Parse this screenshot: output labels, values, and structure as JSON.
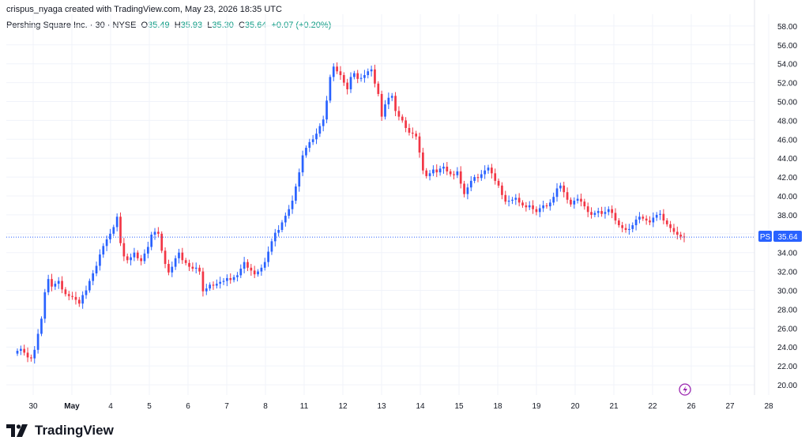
{
  "header": {
    "created_by": "crispus_nyaga created with TradingView.com, May 23, 2026 18:35 UTC"
  },
  "legend": {
    "symbol": "Pershing Square Inc. · 30 · NYSE",
    "o_label": "O",
    "o_value": "35.49",
    "h_label": "H",
    "h_value": "35.93",
    "l_label": "L",
    "l_value": "35.30",
    "c_label": "C",
    "c_value": "35.64",
    "change": "+0.07 (+0.20%)"
  },
  "price_tag": {
    "symbol": "PS",
    "value": "35.64"
  },
  "logo": {
    "text": "TradingView",
    "icon": "tradingview-logo-icon"
  },
  "colors": {
    "up": "#2962ff",
    "down": "#f23645",
    "grid": "#f0f3fa",
    "last_line": "#2962ff",
    "green_text": "#089981"
  },
  "chart_data": {
    "type": "candlestick",
    "title": "Pershing Square Inc. · 30 · NYSE",
    "xlabel": "",
    "ylabel": "",
    "ylim": [
      19,
      59
    ],
    "y_ticks": [
      20,
      22,
      24,
      26,
      28,
      30,
      32,
      34,
      36,
      38,
      40,
      42,
      44,
      46,
      48,
      50,
      52,
      54,
      56,
      58
    ],
    "y_tick_labels": [
      "20.00",
      "22.00",
      "24.00",
      "26.00",
      "28.00",
      "30.00",
      "32.00",
      "34.00",
      "36.00",
      "38.00",
      "40.00",
      "42.00",
      "44.00",
      "46.00",
      "48.00",
      "50.00",
      "52.00",
      "54.00",
      "56.00",
      "58.00"
    ],
    "x_ticks": [
      {
        "label": "30",
        "day": 0
      },
      {
        "label": "May",
        "day": 1,
        "bold": true
      },
      {
        "label": "4",
        "day": 2
      },
      {
        "label": "5",
        "day": 3
      },
      {
        "label": "6",
        "day": 4
      },
      {
        "label": "7",
        "day": 5
      },
      {
        "label": "8",
        "day": 6
      },
      {
        "label": "11",
        "day": 7
      },
      {
        "label": "12",
        "day": 8
      },
      {
        "label": "13",
        "day": 9
      },
      {
        "label": "14",
        "day": 10
      },
      {
        "label": "15",
        "day": 11
      },
      {
        "label": "18",
        "day": 12
      },
      {
        "label": "19",
        "day": 13
      },
      {
        "label": "20",
        "day": 14
      },
      {
        "label": "21",
        "day": 15
      },
      {
        "label": "22",
        "day": 16
      },
      {
        "label": "26",
        "day": 17
      },
      {
        "label": "27",
        "day": 18
      },
      {
        "label": "28",
        "day": 19
      }
    ],
    "grid": true,
    "last_price": 35.64,
    "closes": [
      23.6,
      23.8,
      23.4,
      22.9,
      22.8,
      23.7,
      25.4,
      27.0,
      29.8,
      31.2,
      30.4,
      30.7,
      31.0,
      30.1,
      29.6,
      29.4,
      29.3,
      29.0,
      28.6,
      29.5,
      30.0,
      31.0,
      31.8,
      32.6,
      33.8,
      34.7,
      35.4,
      36.0,
      36.7,
      37.8,
      35.0,
      33.6,
      33.2,
      33.5,
      34.0,
      33.4,
      33.1,
      33.9,
      34.6,
      35.9,
      36.2,
      36.0,
      34.2,
      32.8,
      31.9,
      32.5,
      33.4,
      34.0,
      33.2,
      32.9,
      32.5,
      32.3,
      32.4,
      32.0,
      29.9,
      30.2,
      30.6,
      30.5,
      30.7,
      30.9,
      31.0,
      31.3,
      31.1,
      31.4,
      31.6,
      32.3,
      33.0,
      32.4,
      32.1,
      31.7,
      32.0,
      32.4,
      33.0,
      34.1,
      35.2,
      36.1,
      36.4,
      37.2,
      37.9,
      38.6,
      39.5,
      41.0,
      42.5,
      44.3,
      45.1,
      45.7,
      46.0,
      46.6,
      47.4,
      48.1,
      50.1,
      52.6,
      53.7,
      53.2,
      52.8,
      52.0,
      51.3,
      52.6,
      53.0,
      52.4,
      52.5,
      52.8,
      53.2,
      53.4,
      51.9,
      50.8,
      48.4,
      49.7,
      50.4,
      50.6,
      49.0,
      48.4,
      48.0,
      47.2,
      46.7,
      46.6,
      46.3,
      44.6,
      42.7,
      42.1,
      42.4,
      42.8,
      42.5,
      42.9,
      43.1,
      42.6,
      42.3,
      42.2,
      42.6,
      41.3,
      40.2,
      40.9,
      41.6,
      42.0,
      41.9,
      42.3,
      42.7,
      43.0,
      42.4,
      41.6,
      41.1,
      40.1,
      39.4,
      39.5,
      39.6,
      39.8,
      39.3,
      39.0,
      38.8,
      39.0,
      38.6,
      38.3,
      38.7,
      39.0,
      38.9,
      39.3,
      39.9,
      40.8,
      41.1,
      40.4,
      39.6,
      39.1,
      39.5,
      39.7,
      39.4,
      38.9,
      38.3,
      38.0,
      38.2,
      38.4,
      38.1,
      38.3,
      38.6,
      38.2,
      37.4,
      36.9,
      36.6,
      36.4,
      36.5,
      36.9,
      37.5,
      37.8,
      37.6,
      37.4,
      37.2,
      37.7,
      38.0,
      38.1,
      37.4,
      37.0,
      36.6,
      36.2,
      35.9,
      35.7,
      35.64
    ]
  }
}
